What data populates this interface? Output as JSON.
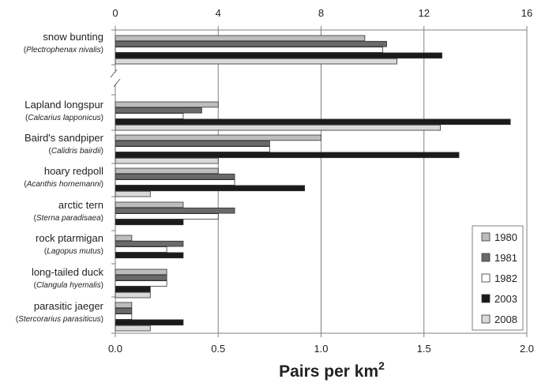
{
  "chart_data": {
    "type": "bar",
    "orientation": "horizontal",
    "xlabel": "Pairs per km",
    "xlabel_superscript": "2",
    "bottom_axis": {
      "range": [
        0,
        2.0
      ],
      "ticks": [
        "0.0",
        "0.5",
        "1.0",
        "1.5",
        "2.0"
      ]
    },
    "top_axis": {
      "range": [
        0,
        16
      ],
      "ticks": [
        "0",
        "4",
        "8",
        "12",
        "16"
      ],
      "applies_to": "snow bunting"
    },
    "axis_break": true,
    "grid": "vertical",
    "legend_position": "bottom-right",
    "categories": [
      {
        "name": "snow bunting",
        "scientific": "Plectrophenax nivalis",
        "axis": "top"
      },
      {
        "name": "Lapland longspur",
        "scientific": "Calcarius lapponicus",
        "axis": "bottom"
      },
      {
        "name": "Baird's sandpiper",
        "scientific": "Calidris bairdii",
        "axis": "bottom"
      },
      {
        "name": "hoary redpoll",
        "scientific": "Acanthis hornemanni",
        "axis": "bottom"
      },
      {
        "name": "arctic tern",
        "scientific": "Sterna paradisaea",
        "axis": "bottom"
      },
      {
        "name": "rock ptarmigan",
        "scientific": "Lagopus mutus",
        "axis": "bottom"
      },
      {
        "name": "long-tailed duck",
        "scientific": "Clangula hyemalis",
        "axis": "bottom"
      },
      {
        "name": "parasitic jaeger",
        "scientific": "Stercorarius parasiticus",
        "axis": "bottom"
      }
    ],
    "series": [
      {
        "name": "1980",
        "color": "#bdbdbd",
        "values": [
          9.7,
          0.5,
          1.0,
          0.5,
          0.33,
          0.08,
          0.25,
          0.08
        ]
      },
      {
        "name": "1981",
        "color": "#6a6a6a",
        "values": [
          10.55,
          0.42,
          0.75,
          0.58,
          0.58,
          0.33,
          0.25,
          0.08
        ]
      },
      {
        "name": "1982",
        "color": "#ffffff",
        "values": [
          10.4,
          0.33,
          0.75,
          0.58,
          0.5,
          0.25,
          0.25,
          0.08
        ]
      },
      {
        "name": "2003",
        "color": "#1a1a1a",
        "values": [
          12.7,
          1.92,
          1.67,
          0.92,
          0.33,
          0.33,
          0.17,
          0.33
        ]
      },
      {
        "name": "2008",
        "color": "#d9d9d9",
        "values": [
          10.95,
          1.58,
          0.5,
          0.17,
          0.0,
          0.0,
          0.17,
          0.17
        ]
      }
    ]
  }
}
